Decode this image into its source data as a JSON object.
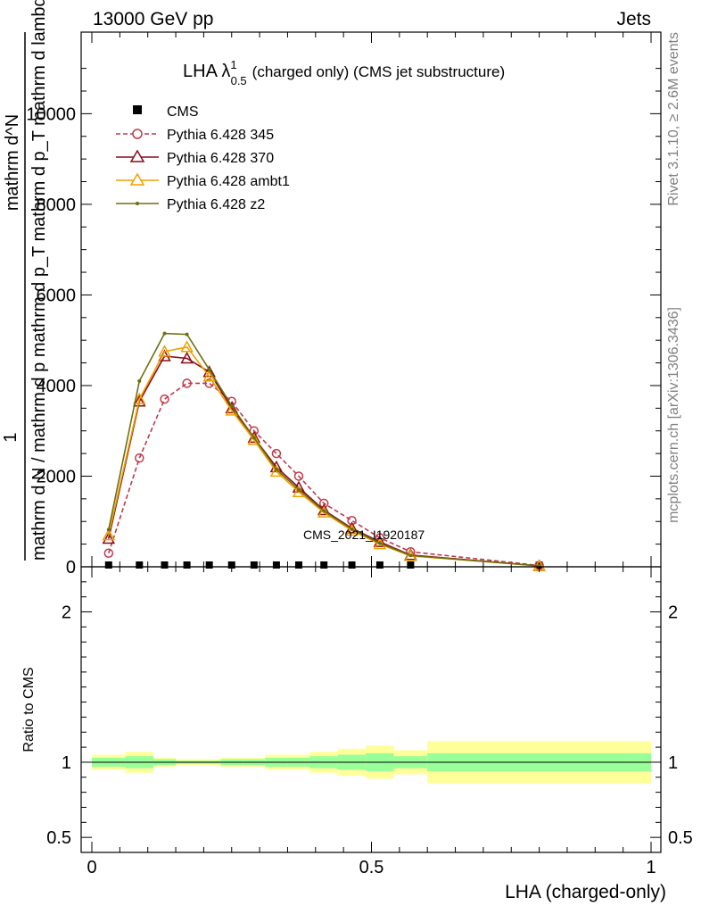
{
  "header": {
    "left": "13000 GeV pp",
    "right": "Jets"
  },
  "side_text": {
    "rivet": "Rivet 3.1.10, ≥ 2.6M events",
    "mcplots": "mcplots.cern.ch [arXiv:1306.3436]"
  },
  "watermark": "CMS_2021_I1920187",
  "chart_data": [
    {
      "type": "line",
      "title_main": "LHA λ",
      "title_sup": "1",
      "title_sub": "0.5",
      "title_rest": "(charged only) (CMS jet substructure)",
      "ylabel_num": "1",
      "ylabel_den": "mathrm d N / mathrm d p mathrm d p_T mathrm d p_T mathrm d lambda",
      "ylabel_den_lines": [
        "mathrm d N / mathrm d p",
        "mathrm d p",
        "mathrm d p",
        "mathrm d lambda"
      ],
      "ylabel_top": "mathrm d^N",
      "xlim": [
        0,
        1
      ],
      "ylim": [
        0,
        11800
      ],
      "yticks": [
        0,
        2000,
        4000,
        6000,
        8000,
        10000
      ],
      "ytick_labels": [
        "0",
        "2000",
        "4000",
        "6000",
        "8000",
        "10000"
      ],
      "legend": [
        {
          "label": "CMS",
          "color": "#000000",
          "marker": "square",
          "dash": false
        },
        {
          "label": "Pythia 6.428 345",
          "color": "#c0394b",
          "marker": "circle",
          "dash": true
        },
        {
          "label": "Pythia 6.428 370",
          "color": "#8b0a1a",
          "marker": "triangle",
          "dash": false
        },
        {
          "label": "Pythia 6.428 ambt1",
          "color": "#f0a000",
          "marker": "triangle",
          "dash": false
        },
        {
          "label": "Pythia 6.428 z2",
          "color": "#6b7010",
          "marker": "dot",
          "dash": false
        }
      ],
      "x": [
        0.03,
        0.085,
        0.13,
        0.17,
        0.21,
        0.25,
        0.29,
        0.33,
        0.37,
        0.415,
        0.465,
        0.515,
        0.57,
        0.8
      ],
      "series": [
        {
          "name": "CMS",
          "values": [
            0,
            0,
            0,
            0,
            0,
            0,
            0,
            0,
            0,
            0,
            0,
            0,
            0,
            0
          ]
        },
        {
          "name": "Pythia 6.428 345",
          "values": [
            300,
            2400,
            3700,
            4050,
            4050,
            3650,
            3000,
            2500,
            2000,
            1400,
            1020,
            640,
            330,
            30
          ]
        },
        {
          "name": "Pythia 6.428 370",
          "values": [
            620,
            3650,
            4650,
            4600,
            4300,
            3500,
            2850,
            2200,
            1750,
            1250,
            850,
            550,
            260,
            20
          ]
        },
        {
          "name": "Pythia 6.428 ambt1",
          "values": [
            700,
            3700,
            4750,
            4850,
            4200,
            3450,
            2800,
            2100,
            1650,
            1200,
            800,
            500,
            240,
            20
          ]
        },
        {
          "name": "Pythia 6.428 z2",
          "values": [
            820,
            4100,
            5150,
            5130,
            4350,
            3550,
            2850,
            2150,
            1700,
            1230,
            830,
            520,
            250,
            20
          ]
        }
      ]
    },
    {
      "type": "area",
      "ylabel": "Ratio to CMS",
      "xlabel": "LHA (charged-only)",
      "xlim": [
        0,
        1
      ],
      "ylim": [
        0.4,
        2.3
      ],
      "xticks": [
        0,
        0.5,
        1
      ],
      "xtick_labels": [
        "0",
        "0.5",
        "1"
      ],
      "yticks": [
        0.5,
        1,
        2
      ],
      "ytick_labels": [
        "0.5",
        "1",
        "2"
      ],
      "bins": [
        0,
        0.06,
        0.11,
        0.15,
        0.19,
        0.23,
        0.27,
        0.31,
        0.35,
        0.39,
        0.44,
        0.49,
        0.54,
        0.6,
        1.0
      ],
      "band_inner": [
        [
          0.97,
          1.03
        ],
        [
          0.96,
          1.04
        ],
        [
          0.98,
          1.02
        ],
        [
          0.99,
          1.01
        ],
        [
          0.99,
          1.01
        ],
        [
          0.98,
          1.02
        ],
        [
          0.98,
          1.02
        ],
        [
          0.97,
          1.03
        ],
        [
          0.97,
          1.03
        ],
        [
          0.96,
          1.04
        ],
        [
          0.95,
          1.05
        ],
        [
          0.94,
          1.06
        ],
        [
          0.96,
          1.04
        ],
        [
          0.94,
          1.06
        ]
      ],
      "band_outer": [
        [
          0.95,
          1.05
        ],
        [
          0.93,
          1.07
        ],
        [
          0.97,
          1.03
        ],
        [
          0.98,
          1.02
        ],
        [
          0.98,
          1.02
        ],
        [
          0.97,
          1.03
        ],
        [
          0.97,
          1.03
        ],
        [
          0.95,
          1.05
        ],
        [
          0.95,
          1.05
        ],
        [
          0.93,
          1.07
        ],
        [
          0.91,
          1.09
        ],
        [
          0.89,
          1.11
        ],
        [
          0.92,
          1.08
        ],
        [
          0.86,
          1.14
        ]
      ],
      "band_colors": {
        "inner": "#99ff99",
        "outer": "#ffff99"
      }
    }
  ]
}
